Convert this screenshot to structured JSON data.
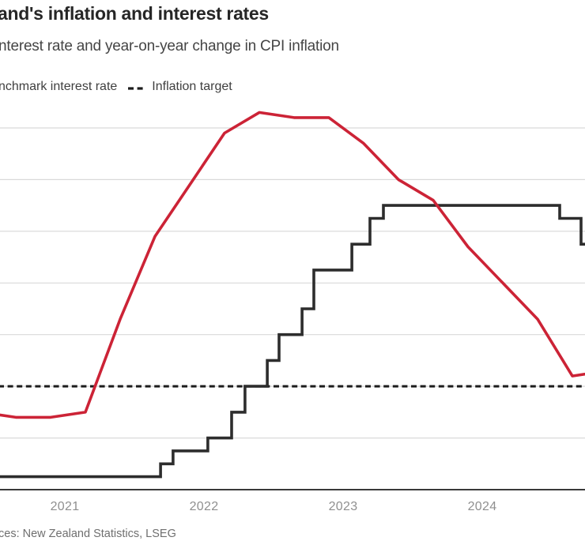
{
  "header": {
    "title": "and's inflation and interest rates",
    "subtitle": "nterest rate and year-on-year change in CPI inflation"
  },
  "legend": {
    "rate_label": "nchmark interest rate",
    "target_label": "Inflation target"
  },
  "source": "ces: New Zealand Statistics, LSEG",
  "colors": {
    "cpi_line_red": "#cc2336",
    "benchmark_line_black": "#2d2d2d",
    "target_dash_black": "#1c1c1c",
    "gridline_gray": "#d9d9d9",
    "axis_dark": "#3a3a3a"
  },
  "chart_data": {
    "type": "line",
    "title": "and's inflation and interest rates",
    "subtitle": "nterest rate and year-on-year change in CPI inflation",
    "x_axis": {
      "ticks": [
        "2021",
        "2022",
        "2023",
        "2024"
      ],
      "range_decimal_years": [
        2020.53,
        2024.78
      ],
      "grid": false
    },
    "y_axis": {
      "unit": "%",
      "range": [
        0,
        7.5
      ],
      "gridline_step": 1,
      "gridline_values": [
        1,
        2,
        3,
        4,
        5,
        6,
        7
      ],
      "grid": true,
      "labels_visible": false,
      "gridline_color": "#d9d9d9",
      "axis_color": "#3a3a3a"
    },
    "legend_position": "top-left",
    "series": [
      {
        "name": "CPI inflation, year-on-year change (%)",
        "type": "line",
        "color": "#cc2336",
        "points": [
          {
            "period": "2020-Q2",
            "value": 1.5
          },
          {
            "period": "2020-Q3",
            "value": 1.4
          },
          {
            "period": "2020-Q4",
            "value": 1.4
          },
          {
            "period": "2021-Q1",
            "value": 1.5
          },
          {
            "period": "2021-Q2",
            "value": 3.3
          },
          {
            "period": "2021-Q3",
            "value": 4.9
          },
          {
            "period": "2021-Q4",
            "value": 5.9
          },
          {
            "period": "2022-Q1",
            "value": 6.9
          },
          {
            "period": "2022-Q2",
            "value": 7.3
          },
          {
            "period": "2022-Q3",
            "value": 7.2
          },
          {
            "period": "2022-Q4",
            "value": 7.2
          },
          {
            "period": "2023-Q1",
            "value": 6.7
          },
          {
            "period": "2023-Q2",
            "value": 6.0
          },
          {
            "period": "2023-Q3",
            "value": 5.6
          },
          {
            "period": "2023-Q4",
            "value": 4.7
          },
          {
            "period": "2024-Q1",
            "value": 4.0
          },
          {
            "period": "2024-Q2",
            "value": 3.3
          },
          {
            "period": "2024-Q3",
            "value": 2.2
          },
          {
            "period": "2024-Q4",
            "value": 2.3
          }
        ]
      },
      {
        "name": "Benchmark interest rate (%)",
        "type": "step",
        "color": "#2d2d2d",
        "steps": [
          {
            "t": 2020.534,
            "rate": 0.25
          },
          {
            "t": 2021.688,
            "rate": 0.5
          },
          {
            "t": 2021.778,
            "rate": 0.75
          },
          {
            "t": 2022.028,
            "rate": 1.0
          },
          {
            "t": 2022.199,
            "rate": 1.5
          },
          {
            "t": 2022.295,
            "rate": 2.0
          },
          {
            "t": 2022.455,
            "rate": 2.5
          },
          {
            "t": 2022.54,
            "rate": 3.0
          },
          {
            "t": 2022.705,
            "rate": 3.5
          },
          {
            "t": 2022.79,
            "rate": 4.25
          },
          {
            "t": 2023.063,
            "rate": 4.75
          },
          {
            "t": 2023.193,
            "rate": 5.25
          },
          {
            "t": 2023.29,
            "rate": 5.5
          },
          {
            "t": 2024.557,
            "rate": 5.25
          },
          {
            "t": 2024.71,
            "rate": 4.75
          }
        ]
      },
      {
        "name": "Inflation target",
        "type": "target",
        "color": "#1c1c1c",
        "value": 2.0,
        "style": "dashed"
      }
    ]
  }
}
